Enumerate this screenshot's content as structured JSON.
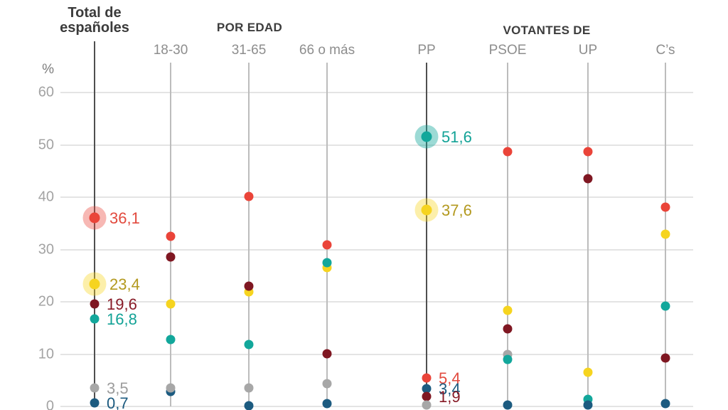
{
  "header": {
    "total_title_line1": "Total de",
    "total_title_line2": "españoles",
    "group_edad": "POR EDAD",
    "group_votantes": "VOTANTES DE",
    "unit": "%"
  },
  "colors": {
    "series": {
      "red": "#ea4439",
      "yellow": "#f6d41f",
      "maroon": "#7f1722",
      "teal": "#12a79b",
      "gray": "#a7a7a7",
      "navy": "#1c5b80"
    },
    "halos": {
      "red": "rgba(234,68,57,0.38)",
      "yellow": "rgba(246,212,31,0.38)",
      "teal": "rgba(18,167,155,0.42)"
    },
    "value_labels": {
      "red": "#e24a3e",
      "yellow": "#b3991f",
      "maroon": "#871a26",
      "teal": "#12a296",
      "gray": "#9c9c9c",
      "navy": "#1b5a7f"
    },
    "line_normal": "#bcbcbc",
    "line_emphasized": "#4f4f4f",
    "gridline": "#e4e4e4"
  },
  "chart_data": {
    "type": "scatter",
    "title": "",
    "unit": "%",
    "ylim": [
      0,
      65
    ],
    "yticks": [
      60,
      50,
      40,
      30,
      20,
      10,
      0
    ],
    "grid": true,
    "groups": [
      {
        "label": "POR EDAD",
        "columns": [
          "18-30",
          "31-65",
          "66 o más"
        ]
      },
      {
        "label": "VOTANTES DE",
        "columns": [
          "PP",
          "PSOE",
          "UP",
          "C’s"
        ]
      }
    ],
    "columns": [
      {
        "id": "total",
        "label": "Total de españoles",
        "emphasized": true,
        "points": [
          {
            "series": "red",
            "value": 36.1,
            "label": "36,1",
            "halo": true
          },
          {
            "series": "yellow",
            "value": 23.4,
            "label": "23,4",
            "halo": true
          },
          {
            "series": "maroon",
            "value": 19.6,
            "label": "19,6"
          },
          {
            "series": "teal",
            "value": 16.8,
            "label": "16,8"
          },
          {
            "series": "gray",
            "value": 3.5,
            "label": "3,5"
          },
          {
            "series": "navy",
            "value": 0.7,
            "label": "0,7"
          }
        ]
      },
      {
        "id": "edad-18-30",
        "label": "18-30",
        "emphasized": false,
        "points": [
          {
            "series": "red",
            "value": 32.5
          },
          {
            "series": "maroon",
            "value": 28.6
          },
          {
            "series": "yellow",
            "value": 19.6
          },
          {
            "series": "teal",
            "value": 12.8
          },
          {
            "series": "navy",
            "value": 2.9
          },
          {
            "series": "gray",
            "value": 3.6
          }
        ]
      },
      {
        "id": "edad-31-65",
        "label": "31-65",
        "emphasized": false,
        "points": [
          {
            "series": "red",
            "value": 40.1
          },
          {
            "series": "yellow",
            "value": 21.9
          },
          {
            "series": "maroon",
            "value": 23.0
          },
          {
            "series": "teal",
            "value": 11.8
          },
          {
            "series": "gray",
            "value": 3.5
          },
          {
            "series": "navy",
            "value": 0.2
          }
        ]
      },
      {
        "id": "edad-66-mas",
        "label": "66 o más",
        "emphasized": false,
        "points": [
          {
            "series": "red",
            "value": 30.9
          },
          {
            "series": "yellow",
            "value": 26.6
          },
          {
            "series": "teal",
            "value": 27.5
          },
          {
            "series": "maroon",
            "value": 10.1
          },
          {
            "series": "gray",
            "value": 4.4
          },
          {
            "series": "navy",
            "value": 0.5
          }
        ]
      },
      {
        "id": "votantes-pp",
        "label": "PP",
        "emphasized": true,
        "points": [
          {
            "series": "teal",
            "value": 51.6,
            "label": "51,6",
            "halo": true
          },
          {
            "series": "yellow",
            "value": 37.6,
            "label": "37,6",
            "halo": true
          },
          {
            "series": "red",
            "value": 5.4,
            "label": "5,4"
          },
          {
            "series": "navy",
            "value": 3.4,
            "label": "3,4"
          },
          {
            "series": "maroon",
            "value": 1.9,
            "label": "1,9"
          },
          {
            "series": "gray",
            "value": 0.3
          }
        ]
      },
      {
        "id": "votantes-psoe",
        "label": "PSOE",
        "emphasized": false,
        "points": [
          {
            "series": "red",
            "value": 48.8
          },
          {
            "series": "yellow",
            "value": 18.4
          },
          {
            "series": "maroon",
            "value": 14.8
          },
          {
            "series": "gray",
            "value": 10.0
          },
          {
            "series": "teal",
            "value": 9.0
          },
          {
            "series": "navy",
            "value": 0.3
          }
        ]
      },
      {
        "id": "votantes-up",
        "label": "UP",
        "emphasized": false,
        "points": [
          {
            "series": "red",
            "value": 48.8
          },
          {
            "series": "maroon",
            "value": 43.6
          },
          {
            "series": "yellow",
            "value": 6.5
          },
          {
            "series": "teal",
            "value": 1.4
          },
          {
            "series": "navy",
            "value": 0.3
          }
        ]
      },
      {
        "id": "votantes-cs",
        "label": "C’s",
        "emphasized": false,
        "points": [
          {
            "series": "red",
            "value": 38.1
          },
          {
            "series": "yellow",
            "value": 32.9
          },
          {
            "series": "teal",
            "value": 19.2
          },
          {
            "series": "maroon",
            "value": 9.3
          },
          {
            "series": "navy",
            "value": 0.6
          }
        ]
      }
    ]
  }
}
